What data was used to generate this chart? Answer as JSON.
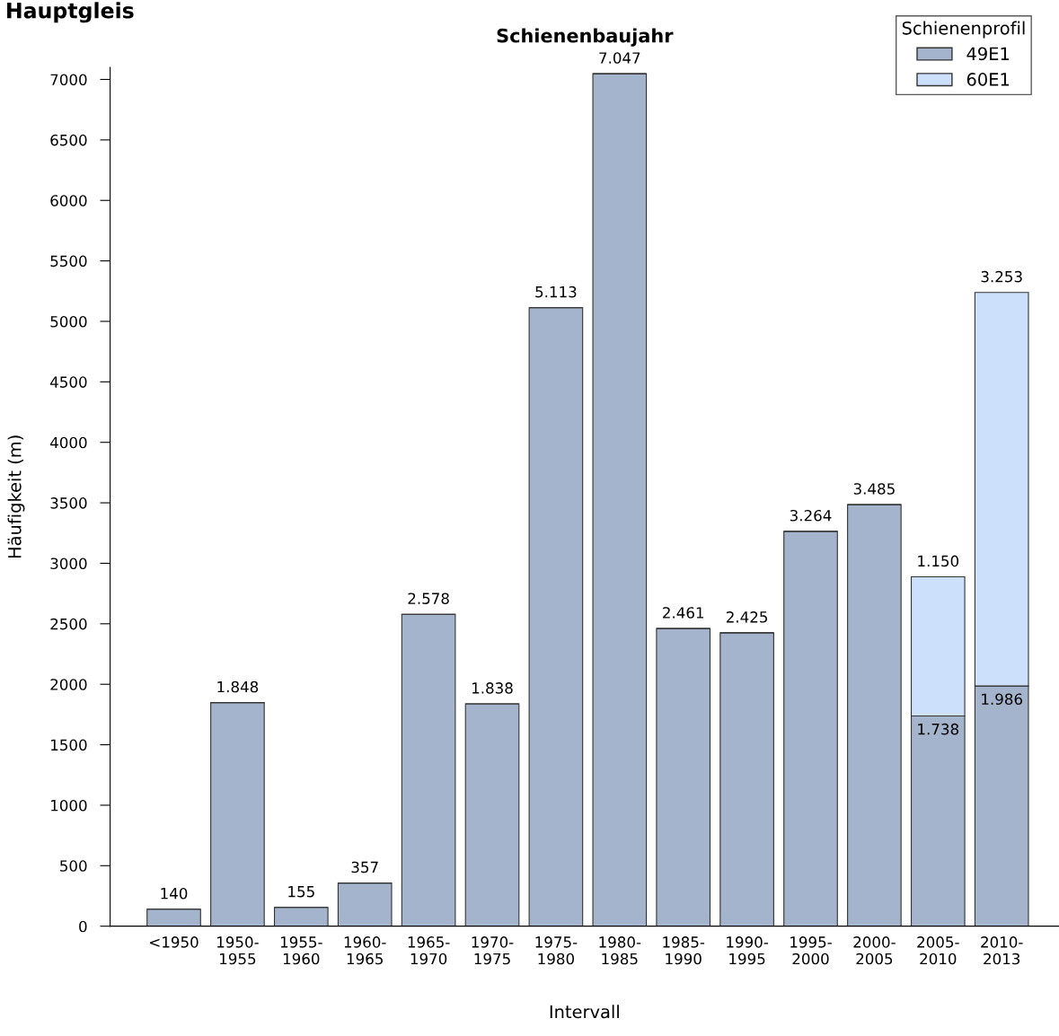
{
  "chart_data": {
    "type": "bar",
    "title": "Schienenbaujahr",
    "subtitle": "Hauptgleis",
    "xlabel": "Intervall",
    "ylabel": "Häufigkeit (m)",
    "legend_title": "Schienenprofil",
    "categories": [
      "<1950",
      "1950-\n1955",
      "1955-\n1960",
      "1960-\n1965",
      "1965-\n1970",
      "1970-\n1975",
      "1975-\n1980",
      "1980-\n1985",
      "1985-\n1990",
      "1990-\n1995",
      "1995-\n2000",
      "2000-\n2005",
      "2005-\n2010",
      "2010-\n2013"
    ],
    "stacked": true,
    "series": [
      {
        "name": "49E1",
        "color": "#a3b4cc",
        "values": [
          140,
          1848,
          155,
          357,
          2578,
          1838,
          5113,
          7047,
          2461,
          2425,
          3264,
          3485,
          1738,
          1986
        ],
        "value_labels": [
          "140",
          "1.848",
          "155",
          "357",
          "2.578",
          "1.838",
          "5.113",
          "7.047",
          "2.461",
          "2.425",
          "3.264",
          "3.485",
          "1.738",
          "1.986"
        ]
      },
      {
        "name": "60E1",
        "color": "#cce0fc",
        "values": [
          null,
          null,
          null,
          null,
          null,
          null,
          null,
          null,
          null,
          null,
          null,
          null,
          1150,
          3253
        ],
        "value_labels": [
          null,
          null,
          null,
          null,
          null,
          null,
          null,
          null,
          null,
          null,
          null,
          null,
          "1.150",
          "3.253"
        ]
      }
    ],
    "ylim": [
      0,
      7100
    ],
    "yticks": [
      0,
      500,
      1000,
      1500,
      2000,
      2500,
      3000,
      3500,
      4000,
      4500,
      5000,
      5500,
      6000,
      6500,
      7000
    ],
    "grid": false,
    "legend": "top right"
  }
}
